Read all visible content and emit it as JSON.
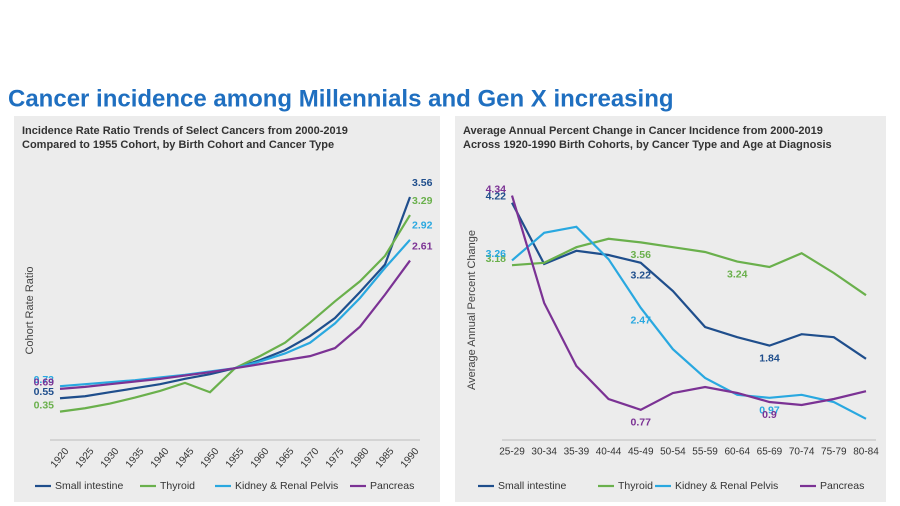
{
  "title": "Cancer incidence among Millennials and Gen X increasing",
  "chart_data": [
    {
      "type": "line",
      "title": [
        "Incidence Rate Ratio Trends of Select Cancers from 2000-2019",
        "Compared to 1955 Cohort, by Birth Cohort and Cancer Type"
      ],
      "ylabel": "Cohort Rate Ratio",
      "categories": [
        "1920",
        "1925",
        "1930",
        "1935",
        "1940",
        "1945",
        "1950",
        "1955",
        "1960",
        "1965",
        "1970",
        "1975",
        "1980",
        "1985",
        "1990"
      ],
      "ylim": [
        0,
        3.8
      ],
      "series": [
        {
          "name": "Small intestine",
          "color": "#1f4e8c",
          "labeled": [
            0,
            14
          ],
          "values": [
            0.55,
            0.58,
            0.64,
            0.7,
            0.76,
            0.84,
            0.91,
            1.0,
            1.12,
            1.27,
            1.48,
            1.75,
            2.14,
            2.55,
            3.56
          ]
        },
        {
          "name": "Thyroid",
          "color": "#6ab04c",
          "labeled": [
            0,
            14
          ],
          "values": [
            0.35,
            0.4,
            0.47,
            0.56,
            0.66,
            0.78,
            0.64,
            1.0,
            1.18,
            1.38,
            1.68,
            2.0,
            2.3,
            2.68,
            3.29
          ]
        },
        {
          "name": "Kidney & Renal Pelvis",
          "color": "#29a8e0",
          "labeled": [
            0,
            14
          ],
          "values": [
            0.73,
            0.76,
            0.79,
            0.82,
            0.86,
            0.9,
            0.95,
            1.0,
            1.1,
            1.22,
            1.38,
            1.67,
            2.05,
            2.5,
            2.92
          ]
        },
        {
          "name": "Pancreas",
          "color": "#7b3294",
          "labeled": [
            0,
            14
          ],
          "values": [
            0.69,
            0.72,
            0.76,
            0.8,
            0.84,
            0.89,
            0.94,
            1.0,
            1.06,
            1.12,
            1.18,
            1.3,
            1.62,
            2.1,
            2.61
          ]
        }
      ]
    },
    {
      "type": "line",
      "title": [
        "Average Annual Percent Change in Cancer Incidence from 2000-2019",
        "Across 1920-1990 Birth Cohorts, by Cancer Type and Age at Diagnosis"
      ],
      "ylabel": "Average Annual Percent Change",
      "categories": [
        "25-29",
        "30-34",
        "35-39",
        "40-44",
        "45-49",
        "50-54",
        "55-59",
        "60-64",
        "65-69",
        "70-74",
        "75-79",
        "80-84"
      ],
      "ylim": [
        0.2,
        4.6
      ],
      "series": [
        {
          "name": "Small intestine",
          "color": "#1f4e8c",
          "labeled": [
            0,
            4,
            8
          ],
          "values": [
            4.22,
            3.2,
            3.42,
            3.35,
            3.22,
            2.75,
            2.15,
            1.98,
            1.84,
            2.03,
            1.98,
            1.62
          ]
        },
        {
          "name": "Thyroid",
          "color": "#6ab04c",
          "labeled": [
            0,
            4,
            7
          ],
          "values": [
            3.18,
            3.22,
            3.48,
            3.62,
            3.56,
            3.48,
            3.4,
            3.24,
            3.15,
            3.38,
            3.05,
            2.68
          ]
        },
        {
          "name": "Kidney & Renal Pelvis",
          "color": "#29a8e0",
          "labeled": [
            0,
            4,
            8
          ],
          "values": [
            3.26,
            3.72,
            3.82,
            3.28,
            2.47,
            1.78,
            1.3,
            1.02,
            0.97,
            1.02,
            0.9,
            0.62
          ]
        },
        {
          "name": "Pancreas",
          "color": "#7b3294",
          "labeled": [
            0,
            4,
            8
          ],
          "values": [
            4.34,
            2.55,
            1.5,
            0.95,
            0.77,
            1.05,
            1.15,
            1.05,
            0.9,
            0.85,
            0.95,
            1.08
          ]
        }
      ]
    }
  ]
}
